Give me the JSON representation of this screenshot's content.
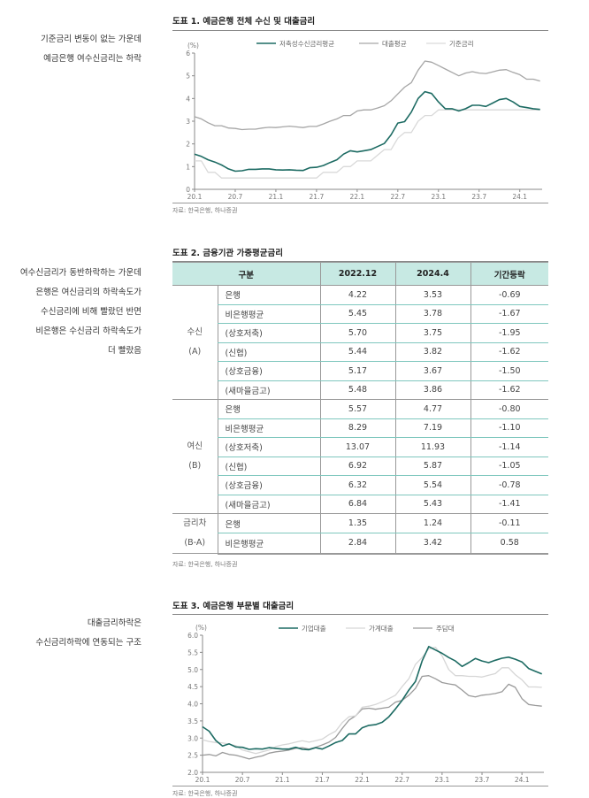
{
  "side_notes": [
    [
      "기준금리 변동이 없는 가운데",
      "예금은행 여수신금리는 하락"
    ],
    [
      "여수신금리가 동반하락하는 가운데",
      "은행은 여신금리의 하락속도가",
      "수신금리에 비해 빨랐던 반면",
      "비은행은 수신금리 하락속도가",
      "더 빨랐음"
    ],
    [
      "대출금리하락은",
      "수신금리하락에 연동되는 구조"
    ]
  ],
  "figure1": {
    "title": "도표 1. 예금은행 전체 수신 및 대출금리",
    "source": "자료: 한국은행, 하나증권"
  },
  "figure2": {
    "title": "도표 2. 금융기관 가중평균금리",
    "source": "자료: 한국은행, 하나증권"
  },
  "figure3": {
    "title": "도표 3. 예금은행 부문별 대출금리",
    "source": "자료: 한국은행, 하나증권"
  },
  "table": {
    "headers": [
      "구분",
      "2022.12",
      "2024.4",
      "기간등락"
    ],
    "groups": [
      {
        "label": [
          "수신",
          "(A)"
        ],
        "rows": [
          [
            "은행",
            "4.22",
            "3.53",
            "-0.69"
          ],
          [
            "비은행평균",
            "5.45",
            "3.78",
            "-1.67"
          ],
          [
            "(상호저축)",
            "5.70",
            "3.75",
            "-1.95"
          ],
          [
            "(신협)",
            "5.44",
            "3.82",
            "-1.62"
          ],
          [
            "(상호금융)",
            "5.17",
            "3.67",
            "-1.50"
          ],
          [
            "(새마을금고)",
            "5.48",
            "3.86",
            "-1.62"
          ]
        ]
      },
      {
        "label": [
          "여신",
          "(B)"
        ],
        "rows": [
          [
            "은행",
            "5.57",
            "4.77",
            "-0.80"
          ],
          [
            "비은행평균",
            "8.29",
            "7.19",
            "-1.10"
          ],
          [
            "(상호저축)",
            "13.07",
            "11.93",
            "-1.14"
          ],
          [
            "(신협)",
            "6.92",
            "5.87",
            "-1.05"
          ],
          [
            "(상호금융)",
            "6.32",
            "5.54",
            "-0.78"
          ],
          [
            "(새마을금고)",
            "6.84",
            "5.43",
            "-1.41"
          ]
        ]
      },
      {
        "label": [
          "금리차",
          "(B-A)"
        ],
        "rows": [
          [
            "은행",
            "1.35",
            "1.24",
            "-0.11"
          ],
          [
            "비은행평균",
            "2.84",
            "3.42",
            "0.58"
          ]
        ]
      }
    ]
  },
  "chart_data": [
    {
      "type": "line",
      "unit_label": "(%)",
      "x_ticks": [
        "20.1",
        "20.7",
        "21.1",
        "21.7",
        "22.1",
        "22.7",
        "23.1",
        "23.7",
        "24.1"
      ],
      "x_start": "2020.1",
      "x_end": "2024.4",
      "frequency": "monthly",
      "ylim": [
        0,
        6
      ],
      "y_ticks": [
        0,
        1,
        2,
        3,
        4,
        5,
        6
      ],
      "y_tick_labels": [
        "0",
        "1",
        "2",
        "3",
        "4",
        "5",
        "6"
      ],
      "legend_position": "top",
      "series": [
        {
          "name": "저축성수신금리평균",
          "color": "#1d6b63",
          "width": 1.6,
          "values": [
            1.55,
            1.45,
            1.3,
            1.2,
            1.07,
            0.9,
            0.8,
            0.82,
            0.88,
            0.88,
            0.9,
            0.9,
            0.86,
            0.85,
            0.86,
            0.84,
            0.83,
            0.95,
            0.97,
            1.05,
            1.18,
            1.3,
            1.55,
            1.7,
            1.65,
            1.7,
            1.75,
            1.88,
            2.02,
            2.4,
            2.92,
            2.98,
            3.4,
            4.0,
            4.3,
            4.22,
            3.85,
            3.55,
            3.55,
            3.45,
            3.55,
            3.7,
            3.7,
            3.65,
            3.8,
            3.95,
            4.0,
            3.85,
            3.65,
            3.6,
            3.55,
            3.52
          ]
        },
        {
          "name": "대출평균",
          "color": "#a6a6a6",
          "width": 1.3,
          "values": [
            3.2,
            3.1,
            2.93,
            2.8,
            2.8,
            2.7,
            2.68,
            2.63,
            2.65,
            2.65,
            2.7,
            2.73,
            2.72,
            2.75,
            2.78,
            2.75,
            2.72,
            2.77,
            2.77,
            2.88,
            3.0,
            3.1,
            3.25,
            3.25,
            3.45,
            3.5,
            3.5,
            3.58,
            3.68,
            3.9,
            4.2,
            4.5,
            4.7,
            5.25,
            5.65,
            5.6,
            5.45,
            5.3,
            5.15,
            5.0,
            5.12,
            5.18,
            5.12,
            5.1,
            5.17,
            5.25,
            5.27,
            5.15,
            5.05,
            4.85,
            4.85,
            4.77
          ]
        },
        {
          "name": "기준금리",
          "color": "#d9d9d9",
          "width": 1.3,
          "values": [
            1.25,
            1.25,
            0.75,
            0.75,
            0.5,
            0.5,
            0.5,
            0.5,
            0.5,
            0.5,
            0.5,
            0.5,
            0.5,
            0.5,
            0.5,
            0.5,
            0.5,
            0.5,
            0.5,
            0.75,
            0.75,
            0.75,
            1.0,
            1.0,
            1.25,
            1.25,
            1.25,
            1.5,
            1.75,
            1.75,
            2.25,
            2.5,
            2.5,
            3.0,
            3.25,
            3.25,
            3.5,
            3.5,
            3.5,
            3.5,
            3.5,
            3.5,
            3.5,
            3.5,
            3.5,
            3.5,
            3.5,
            3.5,
            3.5,
            3.5,
            3.5,
            3.5
          ]
        }
      ]
    },
    {
      "type": "line",
      "unit_label": "(%)",
      "x_ticks": [
        "20.1",
        "20.7",
        "21.1",
        "21.7",
        "22.1",
        "22.7",
        "23.1",
        "23.7",
        "24.1"
      ],
      "x_start": "2020.1",
      "x_end": "2024.4",
      "frequency": "monthly",
      "ylim": [
        2.0,
        6.0
      ],
      "y_ticks": [
        2.0,
        2.5,
        3.0,
        3.5,
        4.0,
        4.5,
        5.0,
        5.5,
        6.0
      ],
      "y_tick_labels": [
        "2.0",
        "2.5",
        "3.0",
        "3.5",
        "4.0",
        "4.5",
        "5.0",
        "5.5",
        "6.0"
      ],
      "legend_position": "top",
      "series": [
        {
          "name": "기업대출",
          "color": "#1d6b63",
          "width": 1.6,
          "values": [
            3.33,
            3.2,
            2.93,
            2.77,
            2.83,
            2.74,
            2.73,
            2.67,
            2.69,
            2.68,
            2.72,
            2.7,
            2.68,
            2.68,
            2.73,
            2.67,
            2.66,
            2.72,
            2.68,
            2.77,
            2.87,
            2.93,
            3.12,
            3.12,
            3.3,
            3.37,
            3.39,
            3.46,
            3.62,
            3.85,
            4.1,
            4.4,
            4.65,
            5.25,
            5.67,
            5.57,
            5.47,
            5.35,
            5.25,
            5.09,
            5.2,
            5.32,
            5.25,
            5.2,
            5.27,
            5.33,
            5.36,
            5.3,
            5.22,
            5.03,
            4.95,
            4.87
          ]
        },
        {
          "name": "가계대출",
          "color": "#d6d6d6",
          "width": 1.3,
          "values": [
            2.95,
            2.9,
            2.87,
            2.86,
            2.82,
            2.78,
            2.65,
            2.6,
            2.55,
            2.6,
            2.65,
            2.75,
            2.8,
            2.83,
            2.88,
            2.92,
            2.88,
            2.92,
            2.97,
            3.1,
            3.2,
            3.45,
            3.62,
            3.65,
            3.9,
            3.93,
            3.98,
            4.06,
            4.15,
            4.25,
            4.5,
            4.73,
            5.15,
            5.35,
            5.6,
            5.65,
            5.4,
            5.0,
            4.82,
            4.82,
            4.8,
            4.8,
            4.78,
            4.83,
            4.88,
            5.05,
            5.05,
            4.85,
            4.7,
            4.49,
            4.49,
            4.48
          ]
        },
        {
          "name": "주담대",
          "color": "#9a9a9a",
          "width": 1.3,
          "values": [
            2.5,
            2.52,
            2.48,
            2.58,
            2.52,
            2.5,
            2.45,
            2.39,
            2.44,
            2.48,
            2.56,
            2.6,
            2.62,
            2.65,
            2.7,
            2.72,
            2.68,
            2.73,
            2.8,
            2.88,
            3.02,
            3.28,
            3.52,
            3.65,
            3.85,
            3.87,
            3.84,
            3.87,
            3.9,
            4.05,
            4.1,
            4.25,
            4.45,
            4.8,
            4.82,
            4.73,
            4.62,
            4.58,
            4.55,
            4.4,
            4.24,
            4.2,
            4.25,
            4.27,
            4.3,
            4.35,
            4.57,
            4.48,
            4.15,
            3.98,
            3.95,
            3.93
          ]
        }
      ]
    }
  ]
}
